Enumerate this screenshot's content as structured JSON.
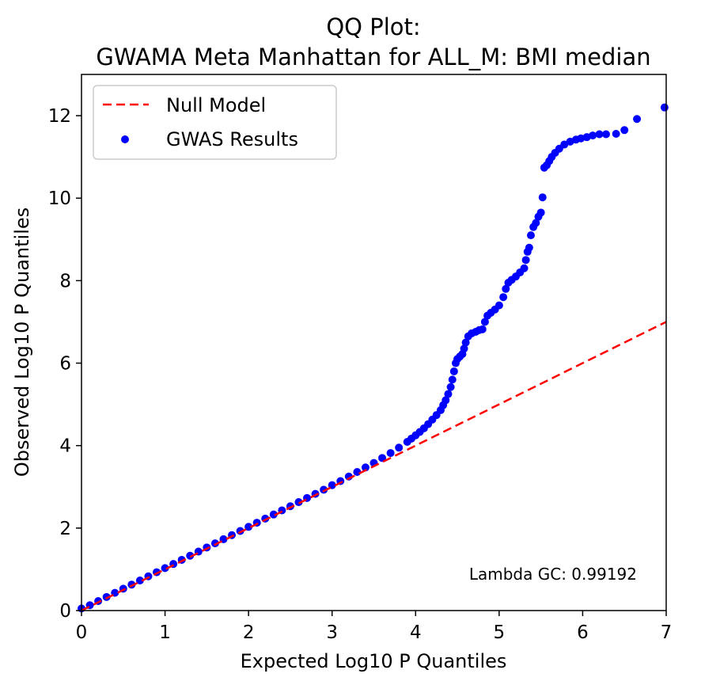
{
  "chart_data": {
    "type": "scatter",
    "title": "QQ Plot:",
    "subtitle": "GWAMA Meta Manhattan for ALL_M: BMI median",
    "xlabel": "Expected Log10 P Quantiles",
    "ylabel": "Observed Log10 P Quantiles",
    "xlim": [
      0,
      7
    ],
    "ylim": [
      0,
      13
    ],
    "xticks": [
      0,
      1,
      2,
      3,
      4,
      5,
      6,
      7
    ],
    "yticks": [
      0,
      2,
      4,
      6,
      8,
      10,
      12
    ],
    "grid": false,
    "legend_position": "upper-left",
    "annotation": "Lambda GC: 0.99192",
    "series": [
      {
        "name": "Null Model",
        "type": "line",
        "style": "dashed",
        "color": "#ff0000",
        "x": [
          0,
          7
        ],
        "y": [
          0,
          7
        ]
      },
      {
        "name": "GWAS Results",
        "type": "scatter",
        "color": "#0000ff",
        "points": [
          [
            0.0,
            0.05
          ],
          [
            0.1,
            0.13
          ],
          [
            0.2,
            0.23
          ],
          [
            0.3,
            0.33
          ],
          [
            0.4,
            0.43
          ],
          [
            0.5,
            0.53
          ],
          [
            0.6,
            0.63
          ],
          [
            0.7,
            0.73
          ],
          [
            0.8,
            0.83
          ],
          [
            0.9,
            0.93
          ],
          [
            1.0,
            1.03
          ],
          [
            1.1,
            1.13
          ],
          [
            1.2,
            1.23
          ],
          [
            1.3,
            1.33
          ],
          [
            1.4,
            1.43
          ],
          [
            1.5,
            1.53
          ],
          [
            1.6,
            1.63
          ],
          [
            1.7,
            1.73
          ],
          [
            1.8,
            1.83
          ],
          [
            1.9,
            1.93
          ],
          [
            2.0,
            2.03
          ],
          [
            2.1,
            2.13
          ],
          [
            2.2,
            2.23
          ],
          [
            2.3,
            2.33
          ],
          [
            2.4,
            2.43
          ],
          [
            2.5,
            2.53
          ],
          [
            2.6,
            2.63
          ],
          [
            2.7,
            2.73
          ],
          [
            2.8,
            2.83
          ],
          [
            2.9,
            2.93
          ],
          [
            3.0,
            3.04
          ],
          [
            3.1,
            3.14
          ],
          [
            3.2,
            3.25
          ],
          [
            3.3,
            3.36
          ],
          [
            3.4,
            3.47
          ],
          [
            3.5,
            3.58
          ],
          [
            3.6,
            3.7
          ],
          [
            3.7,
            3.82
          ],
          [
            3.8,
            3.95
          ],
          [
            3.9,
            4.09
          ],
          [
            3.95,
            4.17
          ],
          [
            4.0,
            4.25
          ],
          [
            4.05,
            4.33
          ],
          [
            4.1,
            4.42
          ],
          [
            4.15,
            4.52
          ],
          [
            4.2,
            4.63
          ],
          [
            4.25,
            4.74
          ],
          [
            4.3,
            4.86
          ],
          [
            4.33,
            4.98
          ],
          [
            4.36,
            5.1
          ],
          [
            4.39,
            5.25
          ],
          [
            4.42,
            5.42
          ],
          [
            4.44,
            5.6
          ],
          [
            4.46,
            5.8
          ],
          [
            4.48,
            6.0
          ],
          [
            4.5,
            6.1
          ],
          [
            4.53,
            6.16
          ],
          [
            4.56,
            6.22
          ],
          [
            4.58,
            6.35
          ],
          [
            4.6,
            6.5
          ],
          [
            4.63,
            6.65
          ],
          [
            4.67,
            6.72
          ],
          [
            4.72,
            6.76
          ],
          [
            4.76,
            6.8
          ],
          [
            4.8,
            6.82
          ],
          [
            4.83,
            7.0
          ],
          [
            4.86,
            7.15
          ],
          [
            4.9,
            7.22
          ],
          [
            4.95,
            7.3
          ],
          [
            5.0,
            7.4
          ],
          [
            5.05,
            7.6
          ],
          [
            5.08,
            7.8
          ],
          [
            5.11,
            7.95
          ],
          [
            5.15,
            8.02
          ],
          [
            5.2,
            8.1
          ],
          [
            5.25,
            8.2
          ],
          [
            5.3,
            8.3
          ],
          [
            5.32,
            8.5
          ],
          [
            5.34,
            8.7
          ],
          [
            5.36,
            8.8
          ],
          [
            5.38,
            9.1
          ],
          [
            5.41,
            9.3
          ],
          [
            5.44,
            9.4
          ],
          [
            5.47,
            9.55
          ],
          [
            5.5,
            9.65
          ],
          [
            5.52,
            10.02
          ],
          [
            5.54,
            10.74
          ],
          [
            5.57,
            10.8
          ],
          [
            5.6,
            10.9
          ],
          [
            5.63,
            11.0
          ],
          [
            5.67,
            11.1
          ],
          [
            5.72,
            11.2
          ],
          [
            5.78,
            11.3
          ],
          [
            5.85,
            11.37
          ],
          [
            5.92,
            11.42
          ],
          [
            5.98,
            11.45
          ],
          [
            6.05,
            11.48
          ],
          [
            6.12,
            11.52
          ],
          [
            6.2,
            11.55
          ],
          [
            6.28,
            11.55
          ],
          [
            6.4,
            11.56
          ],
          [
            6.5,
            11.65
          ],
          [
            6.65,
            11.92
          ],
          [
            6.98,
            12.2
          ]
        ]
      }
    ]
  }
}
